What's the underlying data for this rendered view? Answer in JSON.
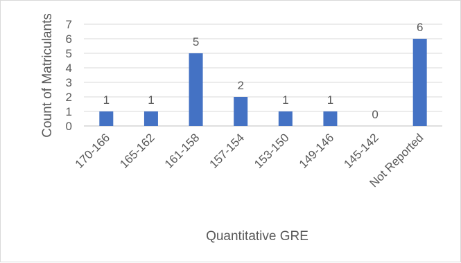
{
  "chart_data": {
    "type": "bar",
    "categories": [
      "170-166",
      "165-162",
      "161-158",
      "157-154",
      "153-150",
      "149-146",
      "145-142",
      "Not Reported"
    ],
    "values": [
      1,
      1,
      5,
      2,
      1,
      1,
      0,
      6
    ],
    "xlabel": "Quantitative GRE",
    "ylabel": "Count of Matriculants",
    "ylim": [
      0,
      7
    ],
    "yticks": [
      "0",
      "1",
      "2",
      "3",
      "4",
      "5",
      "6",
      "7"
    ],
    "grid": true,
    "legend": "none",
    "bar_color": "#4472c4",
    "grid_color": "#d9d9d9"
  }
}
